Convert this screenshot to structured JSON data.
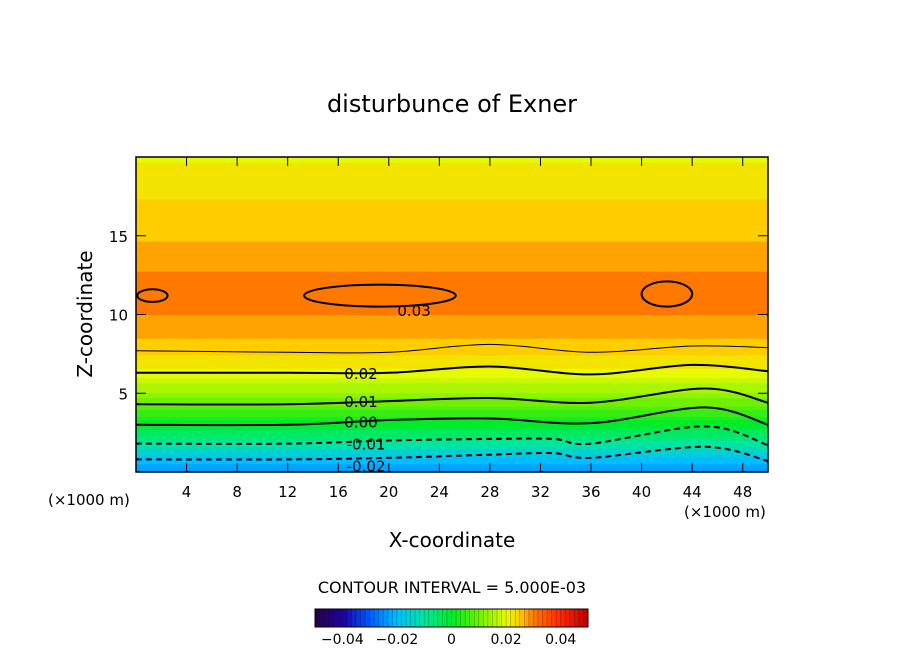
{
  "chart_data": {
    "type": "contour",
    "title": "disturbunce of Exner",
    "xlabel": "X-coordinate",
    "ylabel": "Z-coordinate",
    "x_unit_left": "(×1000 m)",
    "x_unit_right": "(×1000 m)",
    "xlim": [
      0,
      50
    ],
    "ylim": [
      0,
      20
    ],
    "x_ticks": [
      4,
      8,
      12,
      16,
      20,
      24,
      28,
      32,
      36,
      40,
      44,
      48
    ],
    "y_ticks": [
      5,
      10,
      15
    ],
    "contour_interval_text": "CONTOUR INTERVAL = 5.000E-03",
    "contour_interval": 0.005,
    "colorbar": {
      "range": [
        -0.05,
        0.05
      ],
      "ticks": [
        "-0.04",
        "-0.02",
        "0",
        "0.02",
        "0.04"
      ]
    },
    "contour_labels": [
      {
        "text": "0.03",
        "x": 22.0,
        "z": 10.3
      },
      {
        "text": "0.02",
        "x": 17.8,
        "z": 6.3
      },
      {
        "text": "0.01",
        "x": 17.8,
        "z": 4.5
      },
      {
        "text": "0.00",
        "x": 17.8,
        "z": 3.2
      },
      {
        "text": "-0.01",
        "x": 18.2,
        "z": 1.8
      },
      {
        "text": "-0.02",
        "x": 18.2,
        "z": 0.4
      }
    ],
    "field_profile": [
      {
        "z": 0.0,
        "value": -0.025
      },
      {
        "z": 0.8,
        "value": -0.02
      },
      {
        "z": 1.8,
        "value": -0.01
      },
      {
        "z": 3.1,
        "value": 0.0
      },
      {
        "z": 4.4,
        "value": 0.01
      },
      {
        "z": 6.3,
        "value": 0.02
      },
      {
        "z": 8.0,
        "value": 0.025
      },
      {
        "z": 9.5,
        "value": 0.028
      },
      {
        "z": 11.0,
        "value": 0.03
      },
      {
        "z": 12.5,
        "value": 0.029
      },
      {
        "z": 14.0,
        "value": 0.027
      },
      {
        "z": 16.0,
        "value": 0.025
      },
      {
        "z": 18.0,
        "value": 0.023
      },
      {
        "z": 20.0,
        "value": 0.021
      }
    ],
    "level_lines": [
      {
        "value": 0.025,
        "points": [
          [
            0,
            7.7
          ],
          [
            12,
            7.6
          ],
          [
            20,
            7.6
          ],
          [
            28,
            8.1
          ],
          [
            36,
            7.6
          ],
          [
            44,
            8.0
          ],
          [
            50,
            7.9
          ]
        ]
      },
      {
        "value": 0.02,
        "points": [
          [
            0,
            6.3
          ],
          [
            12,
            6.3
          ],
          [
            20,
            6.3
          ],
          [
            28,
            6.7
          ],
          [
            36,
            6.2
          ],
          [
            44,
            6.8
          ],
          [
            50,
            6.4
          ]
        ]
      },
      {
        "value": 0.01,
        "points": [
          [
            0,
            4.3
          ],
          [
            12,
            4.3
          ],
          [
            20,
            4.5
          ],
          [
            28,
            4.7
          ],
          [
            36,
            4.4
          ],
          [
            45,
            5.3
          ],
          [
            50,
            4.4
          ]
        ]
      },
      {
        "value": 0.0,
        "points": [
          [
            0,
            3.0
          ],
          [
            12,
            3.0
          ],
          [
            20,
            3.3
          ],
          [
            28,
            3.4
          ],
          [
            36,
            3.1
          ],
          [
            45,
            4.1
          ],
          [
            50,
            3.0
          ]
        ]
      },
      {
        "value": -0.01,
        "points": [
          [
            0,
            1.8
          ],
          [
            12,
            1.8
          ],
          [
            20,
            2.0
          ],
          [
            28,
            2.1
          ],
          [
            33,
            2.1
          ],
          [
            36,
            1.8
          ],
          [
            45,
            2.9
          ],
          [
            50,
            1.7
          ]
        ]
      },
      {
        "value": -0.02,
        "points": [
          [
            0,
            0.8
          ],
          [
            12,
            0.8
          ],
          [
            20,
            0.9
          ],
          [
            28,
            1.1
          ],
          [
            33,
            1.2
          ],
          [
            36,
            0.9
          ],
          [
            45,
            1.6
          ],
          [
            50,
            0.7
          ]
        ]
      }
    ],
    "closed_contours_003": [
      {
        "cx": 1.3,
        "cz": 11.2,
        "rx": 1.2,
        "rz": 0.4
      },
      {
        "cx": 19.3,
        "cz": 11.2,
        "rx": 6.0,
        "rz": 0.7
      },
      {
        "cx": 42.0,
        "cz": 11.3,
        "rx": 2.0,
        "rz": 0.8
      }
    ]
  }
}
